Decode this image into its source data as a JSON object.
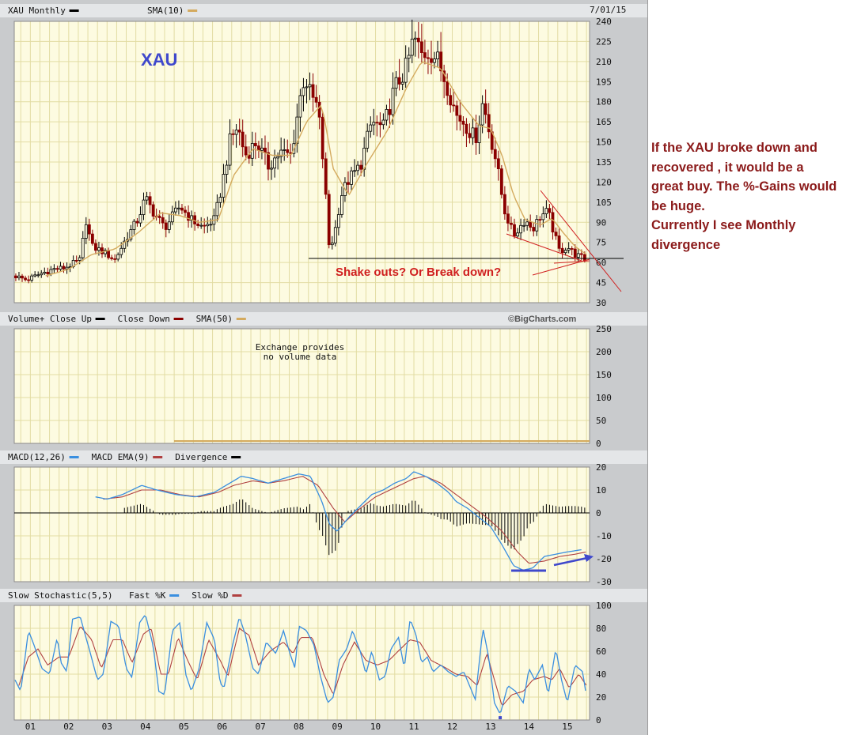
{
  "page": {
    "date": "7/01/15",
    "watermark": "©BigCharts.com",
    "side_note": [
      "If the XAU broke down and",
      "recovered , it would be a",
      "great buy. The %-Gains would",
      "be huge.",
      "Currently I see Monthly",
      "divergence"
    ],
    "colors": {
      "panel_bg": "#fdfbe1",
      "grid": "#e2dca3",
      "frame_bg": "#c9cbcd",
      "up": "#000000",
      "down": "#8b0000",
      "sma": "#d4aa5e",
      "macd": "#3a8fe0",
      "ema": "#b04040",
      "annotation_red": "#d02020",
      "annotation_blue": "#3f48cc",
      "side_note": "#8b1a1a"
    }
  },
  "chart_data": [
    {
      "type": "candlestick",
      "panel": "price",
      "legend": [
        {
          "label": "XAU Monthly",
          "swatch": "up"
        },
        {
          "label": "SMA(10)",
          "swatch": "sma"
        }
      ],
      "annotation_title": "XAU",
      "annotation_text": "Shake outs? Or Break down?",
      "ylim": [
        30,
        240
      ],
      "yticks": [
        30,
        45,
        60,
        75,
        90,
        105,
        120,
        135,
        150,
        165,
        180,
        195,
        210,
        225,
        240
      ],
      "xlim": [
        2000.58,
        2015.58
      ],
      "xticks": [
        "01",
        "02",
        "03",
        "04",
        "05",
        "06",
        "07",
        "08",
        "09",
        "10",
        "11",
        "12",
        "13",
        "14",
        "15"
      ],
      "close_anchors": [
        [
          2000.6,
          50
        ],
        [
          2000.9,
          47
        ],
        [
          2001.3,
          52
        ],
        [
          2001.6,
          55
        ],
        [
          2001.9,
          56
        ],
        [
          2002.3,
          62
        ],
        [
          2002.45,
          92
        ],
        [
          2002.6,
          72
        ],
        [
          2002.9,
          68
        ],
        [
          2003.2,
          62
        ],
        [
          2003.5,
          78
        ],
        [
          2003.8,
          92
        ],
        [
          2004.0,
          108
        ],
        [
          2004.2,
          98
        ],
        [
          2004.5,
          86
        ],
        [
          2004.9,
          102
        ],
        [
          2005.2,
          92
        ],
        [
          2005.5,
          86
        ],
        [
          2005.8,
          92
        ],
        [
          2006.0,
          118
        ],
        [
          2006.2,
          150
        ],
        [
          2006.4,
          162
        ],
        [
          2006.6,
          140
        ],
        [
          2006.9,
          150
        ],
        [
          2007.2,
          132
        ],
        [
          2007.5,
          142
        ],
        [
          2007.8,
          140
        ],
        [
          2008.0,
          178
        ],
        [
          2008.15,
          200
        ],
        [
          2008.3,
          185
        ],
        [
          2008.5,
          175
        ],
        [
          2008.65,
          130
        ],
        [
          2008.8,
          68
        ],
        [
          2008.95,
          85
        ],
        [
          2009.1,
          110
        ],
        [
          2009.3,
          122
        ],
        [
          2009.6,
          132
        ],
        [
          2009.9,
          165
        ],
        [
          2010.2,
          160
        ],
        [
          2010.5,
          190
        ],
        [
          2010.8,
          205
        ],
        [
          2011.0,
          228
        ],
        [
          2011.2,
          215
        ],
        [
          2011.4,
          218
        ],
        [
          2011.6,
          212
        ],
        [
          2011.9,
          190
        ],
        [
          2012.1,
          170
        ],
        [
          2012.3,
          165
        ],
        [
          2012.6,
          152
        ],
        [
          2012.8,
          180
        ],
        [
          2012.95,
          160
        ],
        [
          2013.15,
          135
        ],
        [
          2013.35,
          100
        ],
        [
          2013.6,
          80
        ],
        [
          2013.9,
          92
        ],
        [
          2014.1,
          85
        ],
        [
          2014.3,
          95
        ],
        [
          2014.5,
          98
        ],
        [
          2014.65,
          82
        ],
        [
          2014.8,
          68
        ],
        [
          2015.0,
          72
        ],
        [
          2015.2,
          66
        ],
        [
          2015.5,
          62
        ]
      ],
      "sma10_anchors": [
        [
          2001.4,
          50
        ],
        [
          2002.0,
          55
        ],
        [
          2002.6,
          66
        ],
        [
          2003.2,
          70
        ],
        [
          2003.8,
          82
        ],
        [
          2004.4,
          97
        ],
        [
          2004.9,
          95
        ],
        [
          2005.4,
          90
        ],
        [
          2005.9,
          92
        ],
        [
          2006.3,
          125
        ],
        [
          2006.8,
          145
        ],
        [
          2007.3,
          140
        ],
        [
          2007.8,
          140
        ],
        [
          2008.2,
          165
        ],
        [
          2008.6,
          178
        ],
        [
          2008.9,
          130
        ],
        [
          2009.3,
          110
        ],
        [
          2009.8,
          135
        ],
        [
          2010.3,
          158
        ],
        [
          2010.8,
          190
        ],
        [
          2011.2,
          210
        ],
        [
          2011.7,
          205
        ],
        [
          2012.2,
          180
        ],
        [
          2012.7,
          162
        ],
        [
          2013.0,
          160
        ],
        [
          2013.3,
          140
        ],
        [
          2013.6,
          110
        ],
        [
          2013.9,
          92
        ],
        [
          2014.3,
          88
        ],
        [
          2014.6,
          93
        ],
        [
          2014.9,
          82
        ],
        [
          2015.2,
          72
        ],
        [
          2015.5,
          66
        ]
      ]
    },
    {
      "type": "bar",
      "panel": "volume",
      "legend": [
        {
          "label": "Volume+ Close Up",
          "swatch": "up"
        },
        {
          "label": "Close Down",
          "swatch": "down"
        },
        {
          "label": "SMA(50)",
          "swatch": "sma"
        }
      ],
      "message": [
        "Exchange provides",
        "no volume data"
      ],
      "ylim": [
        0,
        250
      ],
      "yticks": [
        0,
        50,
        100,
        150,
        200,
        250
      ],
      "values": []
    },
    {
      "type": "line",
      "panel": "macd",
      "legend": [
        {
          "label": "MACD(12,26)",
          "swatch": "macd"
        },
        {
          "label": "MACD EMA(9)",
          "swatch": "ema"
        },
        {
          "label": "Divergence",
          "swatch": "up"
        }
      ],
      "ylim": [
        -30,
        20
      ],
      "yticks": [
        -30,
        -20,
        -10,
        0,
        10,
        20
      ],
      "macd_anchors": [
        [
          2002.7,
          7
        ],
        [
          2003.0,
          6
        ],
        [
          2003.4,
          8
        ],
        [
          2003.9,
          12
        ],
        [
          2004.3,
          10
        ],
        [
          2004.8,
          8
        ],
        [
          2005.3,
          7
        ],
        [
          2005.8,
          9
        ],
        [
          2006.1,
          12
        ],
        [
          2006.5,
          16
        ],
        [
          2006.8,
          15
        ],
        [
          2007.2,
          13
        ],
        [
          2007.6,
          15
        ],
        [
          2008.0,
          17
        ],
        [
          2008.3,
          16
        ],
        [
          2008.6,
          5
        ],
        [
          2008.8,
          -5
        ],
        [
          2009.0,
          -8
        ],
        [
          2009.3,
          -2
        ],
        [
          2009.6,
          3
        ],
        [
          2009.9,
          8
        ],
        [
          2010.2,
          10
        ],
        [
          2010.5,
          13
        ],
        [
          2010.8,
          15
        ],
        [
          2011.0,
          18
        ],
        [
          2011.3,
          16
        ],
        [
          2011.6,
          13
        ],
        [
          2011.9,
          9
        ],
        [
          2012.1,
          5
        ],
        [
          2012.4,
          2
        ],
        [
          2012.7,
          -2
        ],
        [
          2013.0,
          -6
        ],
        [
          2013.3,
          -14
        ],
        [
          2013.6,
          -23
        ],
        [
          2013.85,
          -25
        ],
        [
          2014.1,
          -24
        ],
        [
          2014.4,
          -19
        ],
        [
          2014.7,
          -18
        ],
        [
          2015.0,
          -17
        ],
        [
          2015.4,
          -16
        ]
      ],
      "ema_anchors": [
        [
          2002.9,
          6
        ],
        [
          2003.4,
          7
        ],
        [
          2003.9,
          10
        ],
        [
          2004.4,
          10
        ],
        [
          2004.9,
          8
        ],
        [
          2005.4,
          7
        ],
        [
          2005.9,
          9
        ],
        [
          2006.3,
          12
        ],
        [
          2006.8,
          14
        ],
        [
          2007.2,
          13
        ],
        [
          2007.6,
          14
        ],
        [
          2008.1,
          16
        ],
        [
          2008.5,
          12
        ],
        [
          2008.9,
          2
        ],
        [
          2009.2,
          -4
        ],
        [
          2009.6,
          2
        ],
        [
          2010.0,
          7
        ],
        [
          2010.5,
          11
        ],
        [
          2011.0,
          15
        ],
        [
          2011.3,
          16
        ],
        [
          2011.7,
          13
        ],
        [
          2012.1,
          8
        ],
        [
          2012.5,
          3
        ],
        [
          2012.9,
          -2
        ],
        [
          2013.3,
          -8
        ],
        [
          2013.7,
          -17
        ],
        [
          2014.0,
          -22
        ],
        [
          2014.4,
          -21
        ],
        [
          2014.8,
          -19
        ],
        [
          2015.2,
          -18
        ],
        [
          2015.5,
          -17
        ]
      ],
      "divergence_note": "Divergence = MACD − EMA, drawn as histogram bars"
    },
    {
      "type": "line",
      "panel": "stochastic",
      "legend": [
        {
          "label": "Slow Stochastic(5,5)",
          "swatch": null
        },
        {
          "label": "Fast %K",
          "swatch": "macd"
        },
        {
          "label": "Slow %D",
          "swatch": "ema"
        }
      ],
      "ylim": [
        0,
        100
      ],
      "yticks": [
        0,
        20,
        40,
        60,
        80,
        100
      ],
      "fast_k_anchors": [
        [
          2000.6,
          35
        ],
        [
          2000.75,
          25
        ],
        [
          2000.95,
          78
        ],
        [
          2001.1,
          65
        ],
        [
          2001.3,
          45
        ],
        [
          2001.5,
          40
        ],
        [
          2001.7,
          72
        ],
        [
          2001.8,
          50
        ],
        [
          2001.95,
          42
        ],
        [
          2002.1,
          88
        ],
        [
          2002.3,
          90
        ],
        [
          2002.55,
          60
        ],
        [
          2002.75,
          35
        ],
        [
          2002.9,
          40
        ],
        [
          2003.1,
          86
        ],
        [
          2003.3,
          82
        ],
        [
          2003.5,
          45
        ],
        [
          2003.65,
          37
        ],
        [
          2003.85,
          85
        ],
        [
          2004.0,
          92
        ],
        [
          2004.2,
          65
        ],
        [
          2004.35,
          25
        ],
        [
          2004.5,
          22
        ],
        [
          2004.7,
          78
        ],
        [
          2004.9,
          85
        ],
        [
          2005.05,
          40
        ],
        [
          2005.2,
          25
        ],
        [
          2005.4,
          45
        ],
        [
          2005.6,
          85
        ],
        [
          2005.8,
          70
        ],
        [
          2005.95,
          32
        ],
        [
          2006.05,
          28
        ],
        [
          2006.25,
          62
        ],
        [
          2006.45,
          90
        ],
        [
          2006.6,
          75
        ],
        [
          2006.8,
          45
        ],
        [
          2006.95,
          40
        ],
        [
          2007.15,
          68
        ],
        [
          2007.4,
          58
        ],
        [
          2007.6,
          78
        ],
        [
          2007.75,
          60
        ],
        [
          2007.9,
          45
        ],
        [
          2008.0,
          82
        ],
        [
          2008.2,
          78
        ],
        [
          2008.4,
          65
        ],
        [
          2008.55,
          40
        ],
        [
          2008.75,
          15
        ],
        [
          2008.9,
          20
        ],
        [
          2009.05,
          52
        ],
        [
          2009.25,
          62
        ],
        [
          2009.4,
          78
        ],
        [
          2009.6,
          60
        ],
        [
          2009.75,
          40
        ],
        [
          2009.9,
          60
        ],
        [
          2010.1,
          35
        ],
        [
          2010.25,
          38
        ],
        [
          2010.4,
          62
        ],
        [
          2010.6,
          72
        ],
        [
          2010.75,
          45
        ],
        [
          2010.9,
          88
        ],
        [
          2011.05,
          75
        ],
        [
          2011.2,
          50
        ],
        [
          2011.35,
          55
        ],
        [
          2011.5,
          42
        ],
        [
          2011.7,
          48
        ],
        [
          2011.9,
          42
        ],
        [
          2012.1,
          38
        ],
        [
          2012.3,
          42
        ],
        [
          2012.45,
          30
        ],
        [
          2012.6,
          18
        ],
        [
          2012.8,
          80
        ],
        [
          2012.95,
          55
        ],
        [
          2013.1,
          15
        ],
        [
          2013.25,
          5
        ],
        [
          2013.45,
          30
        ],
        [
          2013.65,
          25
        ],
        [
          2013.85,
          15
        ],
        [
          2014.0,
          45
        ],
        [
          2014.15,
          35
        ],
        [
          2014.35,
          48
        ],
        [
          2014.5,
          22
        ],
        [
          2014.7,
          62
        ],
        [
          2014.85,
          35
        ],
        [
          2015.0,
          15
        ],
        [
          2015.2,
          48
        ],
        [
          2015.4,
          42
        ],
        [
          2015.5,
          20
        ]
      ],
      "slow_d_anchors": [
        [
          2000.7,
          30
        ],
        [
          2000.95,
          55
        ],
        [
          2001.2,
          62
        ],
        [
          2001.45,
          48
        ],
        [
          2001.75,
          55
        ],
        [
          2002.0,
          55
        ],
        [
          2002.3,
          82
        ],
        [
          2002.6,
          70
        ],
        [
          2002.85,
          45
        ],
        [
          2003.15,
          70
        ],
        [
          2003.4,
          70
        ],
        [
          2003.65,
          50
        ],
        [
          2003.95,
          75
        ],
        [
          2004.15,
          80
        ],
        [
          2004.4,
          40
        ],
        [
          2004.6,
          40
        ],
        [
          2004.85,
          72
        ],
        [
          2005.1,
          52
        ],
        [
          2005.35,
          35
        ],
        [
          2005.65,
          70
        ],
        [
          2005.95,
          52
        ],
        [
          2006.15,
          38
        ],
        [
          2006.45,
          80
        ],
        [
          2006.7,
          74
        ],
        [
          2006.95,
          48
        ],
        [
          2007.25,
          60
        ],
        [
          2007.6,
          68
        ],
        [
          2007.85,
          58
        ],
        [
          2008.05,
          72
        ],
        [
          2008.35,
          72
        ],
        [
          2008.65,
          40
        ],
        [
          2008.9,
          22
        ],
        [
          2009.15,
          48
        ],
        [
          2009.45,
          68
        ],
        [
          2009.75,
          52
        ],
        [
          2010.05,
          48
        ],
        [
          2010.35,
          52
        ],
        [
          2010.65,
          62
        ],
        [
          2010.9,
          70
        ],
        [
          2011.15,
          68
        ],
        [
          2011.45,
          52
        ],
        [
          2011.8,
          46
        ],
        [
          2012.1,
          40
        ],
        [
          2012.4,
          38
        ],
        [
          2012.65,
          30
        ],
        [
          2012.9,
          58
        ],
        [
          2013.1,
          35
        ],
        [
          2013.3,
          12
        ],
        [
          2013.55,
          22
        ],
        [
          2013.85,
          25
        ],
        [
          2014.1,
          35
        ],
        [
          2014.4,
          38
        ],
        [
          2014.6,
          35
        ],
        [
          2014.8,
          45
        ],
        [
          2015.05,
          28
        ],
        [
          2015.3,
          40
        ],
        [
          2015.5,
          30
        ]
      ]
    }
  ]
}
